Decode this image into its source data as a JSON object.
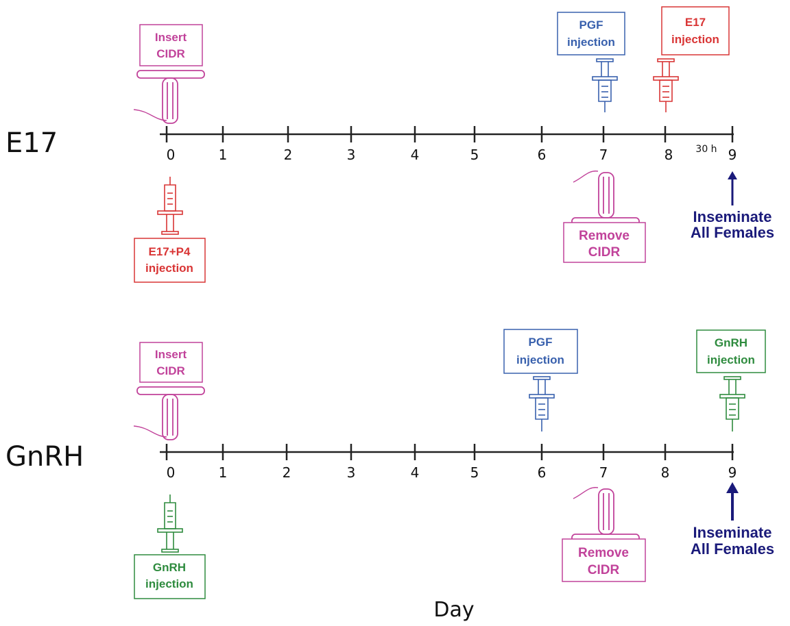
{
  "colors": {
    "cidr": "#c1429a",
    "e17": "#d93535",
    "pgf": "#3860ad",
    "gnrh": "#2e8b3e",
    "inseminate": "#1a1a7a",
    "axis": "#222222"
  },
  "x_axis_label": "Day",
  "protocols": [
    {
      "name": "E17",
      "days": [
        "0",
        "1",
        "2",
        "3",
        "4",
        "5",
        "6",
        "7",
        "8",
        "9"
      ],
      "interval_note": "30 h",
      "insert": {
        "line1": "Insert",
        "line2": "CIDR",
        "day": 0
      },
      "remove": {
        "line1": "Remove",
        "line2": "CIDR",
        "day": 7
      },
      "start_injection": {
        "line1": "E17+P4",
        "line2": "injection",
        "day": 0,
        "color_key": "e17"
      },
      "pgf_injection": {
        "line1": "PGF",
        "line2": "injection",
        "day": 7
      },
      "final_injection": {
        "line1": "E17",
        "line2": "injection",
        "day": 8,
        "color_key": "e17"
      },
      "inseminate": {
        "line1": "Inseminate",
        "line2": "All Females",
        "day": 9
      }
    },
    {
      "name": "GnRH",
      "days": [
        "0",
        "1",
        "2",
        "3",
        "4",
        "5",
        "6",
        "7",
        "8",
        "9"
      ],
      "insert": {
        "line1": "Insert",
        "line2": "CIDR",
        "day": 0
      },
      "remove": {
        "line1": "Remove",
        "line2": "CIDR",
        "day": 7
      },
      "start_injection": {
        "line1": "GnRH",
        "line2": "injection",
        "day": 0,
        "color_key": "gnrh"
      },
      "pgf_injection": {
        "line1": "PGF",
        "line2": "injection",
        "day": 6
      },
      "final_injection": {
        "line1": "GnRH",
        "line2": "injection",
        "day": 9,
        "color_key": "gnrh"
      },
      "inseminate": {
        "line1": "Inseminate",
        "line2": "All Females",
        "day": 9
      }
    }
  ]
}
